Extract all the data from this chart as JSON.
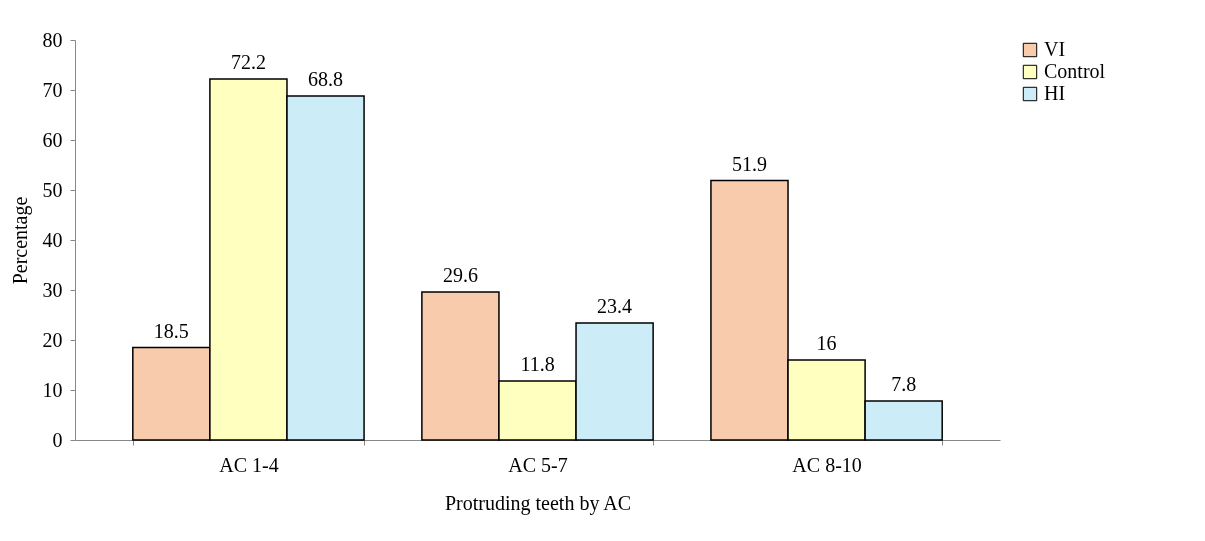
{
  "chart_data": {
    "type": "bar",
    "xlabel": "Protruding teeth by AC",
    "ylabel": "Percentage",
    "categories": [
      "AC 1-4",
      "AC 5-7",
      "AC 8-10"
    ],
    "series": [
      {
        "name": "VI",
        "color": "#f8cbad",
        "values": [
          18.5,
          29.6,
          51.9
        ]
      },
      {
        "name": "Control",
        "color": "#ffffc0",
        "values": [
          72.2,
          11.8,
          16
        ]
      },
      {
        "name": "HI",
        "color": "#ccecf8",
        "values": [
          68.8,
          23.4,
          7.8
        ]
      }
    ],
    "ylim": [
      0,
      80
    ],
    "yticks": [
      0,
      10,
      20,
      30,
      40,
      50,
      60,
      70,
      80
    ],
    "grid": false,
    "legend": "right",
    "data_labels": true
  }
}
